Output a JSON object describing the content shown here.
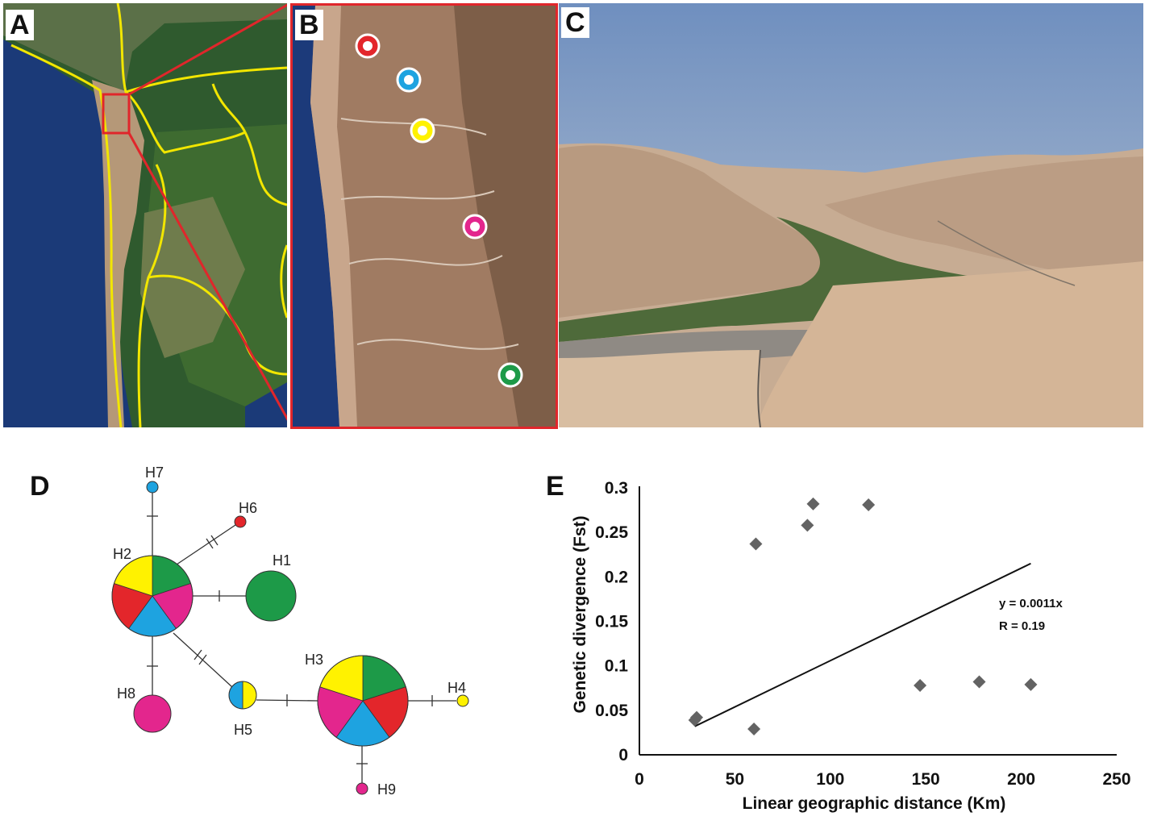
{
  "panels": {
    "a": {
      "letter": "A"
    },
    "b": {
      "letter": "B"
    },
    "c": {
      "letter": "C"
    },
    "d": {
      "letter": "D"
    },
    "e": {
      "letter": "E"
    }
  },
  "colors": {
    "red": "#e3262b",
    "blue": "#1ea3e0",
    "yellow": "#fff200",
    "pink": "#e3268d",
    "green": "#1d9a48",
    "border": "#e0262b",
    "borderline": "#f2e600"
  },
  "map_b_sites": [
    "red",
    "blue",
    "yellow",
    "pink",
    "green"
  ],
  "network": {
    "haplotypes": [
      {
        "id": "H1",
        "label": "H1"
      },
      {
        "id": "H2",
        "label": "H2"
      },
      {
        "id": "H3",
        "label": "H3"
      },
      {
        "id": "H4",
        "label": "H4"
      },
      {
        "id": "H5",
        "label": "H5"
      },
      {
        "id": "H6",
        "label": "H6"
      },
      {
        "id": "H7",
        "label": "H7"
      },
      {
        "id": "H8",
        "label": "H8"
      },
      {
        "id": "H9",
        "label": "H9"
      }
    ],
    "h2_composition": [
      "green",
      "pink",
      "blue",
      "red",
      "yellow"
    ],
    "h3_composition": [
      "green",
      "red",
      "blue",
      "pink",
      "yellow"
    ],
    "h5_composition": [
      "yellow",
      "blue"
    ]
  },
  "chart_data": {
    "type": "scatter",
    "xlabel": "Linear geographic distance  (Km)",
    "ylabel": "Genetic divergence  (Fst)",
    "xlim": [
      0,
      250
    ],
    "ylim": [
      0,
      0.3
    ],
    "xticks": [
      "0",
      "50",
      "100",
      "150",
      "200",
      "250"
    ],
    "yticks": [
      "0",
      "0.05",
      "0.1",
      "0.15",
      "0.2",
      "0.25",
      "0.3"
    ],
    "points": [
      {
        "x": 29,
        "y": 0.039
      },
      {
        "x": 30,
        "y": 0.042
      },
      {
        "x": 60,
        "y": 0.029
      },
      {
        "x": 61,
        "y": 0.237
      },
      {
        "x": 88,
        "y": 0.258
      },
      {
        "x": 91,
        "y": 0.282
      },
      {
        "x": 120,
        "y": 0.281
      },
      {
        "x": 147,
        "y": 0.078
      },
      {
        "x": 178,
        "y": 0.082
      },
      {
        "x": 205,
        "y": 0.079
      }
    ],
    "trendline": {
      "x": [
        29,
        205
      ],
      "y": [
        0.032,
        0.215
      ]
    },
    "equation": "y = 0.0011x",
    "r_value": "R = 0.19",
    "marker": "diamond",
    "marker_color": "#636363",
    "grid": false
  }
}
